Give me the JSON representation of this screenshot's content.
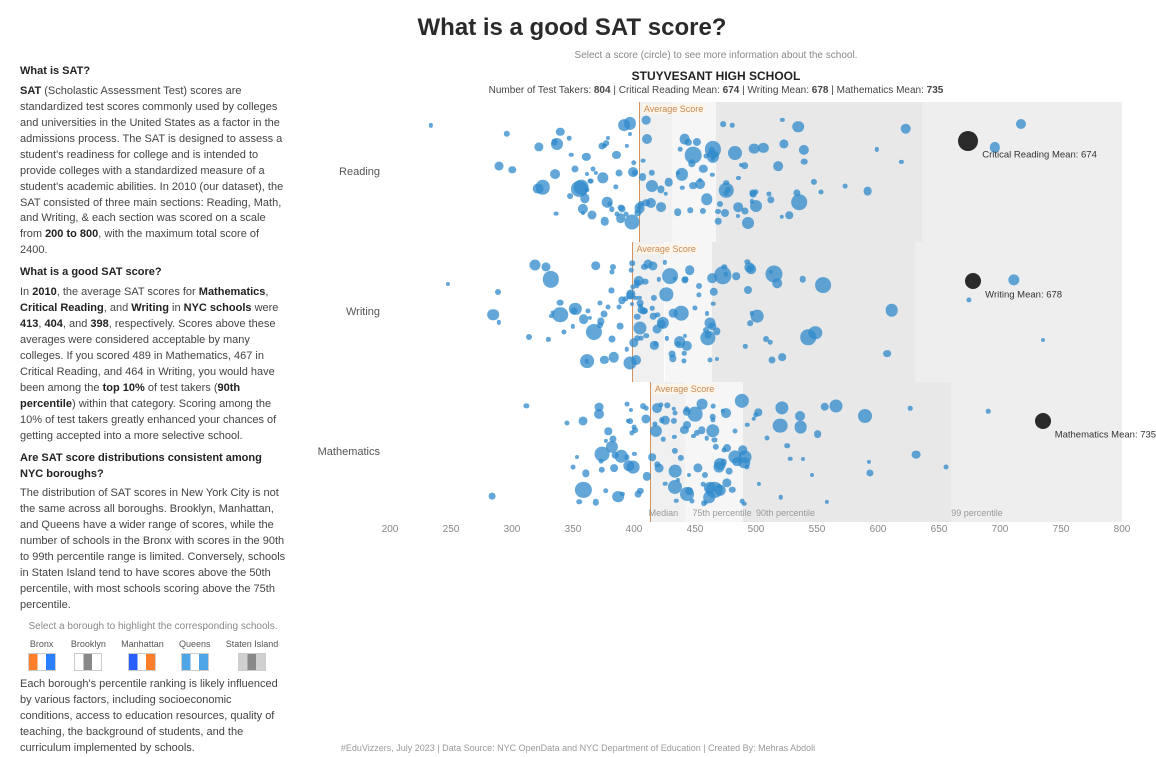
{
  "title": "What is a good SAT score?",
  "left": {
    "h1": "What is SAT?",
    "p1a": "SAT",
    "p1b": " (Scholastic Assessment Test) scores are standardized test scores commonly used by colleges and universities in the United States as a factor in the admissions process. The SAT is designed to assess a student's readiness for college and is intended to provide colleges with a standardized measure of a student's academic abilities. In 2010 (our dataset), the SAT consisted of three main sections: Reading, Math, and Writing, & each section was scored on a scale from ",
    "p1c": "200 to 800",
    "p1d": ", with the maximum total score of 2400.",
    "h2": "What is a good SAT score?",
    "p2a": "In ",
    "p2b": "2010",
    "p2c": ", the average SAT scores for ",
    "p2d": "Mathematics",
    "p2e": ", ",
    "p2f": "Critical Reading",
    "p2g": ", and ",
    "p2h": "Writing",
    "p2i": " in ",
    "p2j": "NYC schools",
    "p2k": " were ",
    "p2l": "413",
    "p2m": ", ",
    "p2n": "404",
    "p2o": ", and ",
    "p2p": "398",
    "p2q": ", respectively. Scores above these averages were considered acceptable by many colleges. If you scored 489 in Mathematics, 467 in Critical Reading, and 464 in Writing, you would have been among the ",
    "p2r": "top 10%",
    "p2s": " of test takers (",
    "p2t": "90th percentile",
    "p2u": ") within that category. Scoring among the 10% of test takers greatly enhanced your chances of getting accepted into a more selective school.",
    "h3": "Are SAT score distributions consistent among NYC boroughs?",
    "p3": "The distribution of SAT scores in New York City is not the same across all boroughs. Brooklyn, Manhattan, and Queens have a wider range of scores, while the number of schools in the Bronx with scores in the 90th to 99th percentile range is limited. Conversely, schools in Staten Island tend to have scores above the 50th percentile, with most schools scoring above the 75th percentile.",
    "borough_instr": "Select a borough to highlight the corresponding schools.",
    "boroughs": [
      {
        "name": "Bronx",
        "colors": [
          "#ff7f2a",
          "#ffffff",
          "#2a7fff"
        ]
      },
      {
        "name": "Brooklyn",
        "colors": [
          "#ffffff",
          "#888888",
          "#ffffff"
        ]
      },
      {
        "name": "Manhattan",
        "colors": [
          "#2a5fff",
          "#ffffff",
          "#ff7f2a"
        ]
      },
      {
        "name": "Queens",
        "colors": [
          "#4fa6e6",
          "#ffffff",
          "#4fa6e6"
        ]
      },
      {
        "name": "Staten Island",
        "colors": [
          "#d0d0d0",
          "#888888",
          "#d0d0d0"
        ]
      }
    ],
    "p4": "Each borough's percentile ranking is likely influenced by various factors, including socioeconomic conditions, access to education resources, quality of teaching, the background of students, and the curriculum implemented by schools."
  },
  "chart": {
    "instruction": "Select a score (circle) to see more information about the school.",
    "school_name": "STUYVESANT HIGH SCHOOL",
    "school_stats_prefix": "Number of Test Takers: ",
    "school_takers": "804",
    "school_cr_label": " | Critical Reading Mean:  ",
    "school_cr": "674",
    "school_wr_label": " | Writing Mean:  ",
    "school_wr": "678",
    "school_ma_label": "  |  Mathematics Mean: ",
    "school_ma": "735",
    "xmin": 200,
    "xmax": 800,
    "xticks": [
      200,
      250,
      300,
      350,
      400,
      450,
      500,
      550,
      600,
      650,
      700,
      750,
      800
    ],
    "dot_color": "#2f8acb",
    "dot_opacity": 0.75,
    "highlight_color": "#2a2a2a",
    "background": "#ffffff",
    "band_color": "rgba(0,0,0,0.04)",
    "avg_line_color": "#d4935e",
    "rows": [
      {
        "label": "Reading",
        "avg": 404,
        "avg_label": "Average Score",
        "highlight": {
          "x": 674,
          "r": 10,
          "label": "Critical Reading Mean: 674"
        },
        "bands": [
          {
            "from": 404,
            "to": 431
          },
          {
            "from": 431,
            "to": 467
          },
          {
            "from": 467,
            "to": 636
          },
          {
            "from": 636,
            "to": 800
          }
        ]
      },
      {
        "label": "Writing",
        "avg": 398,
        "avg_label": "Average Score",
        "highlight": {
          "x": 678,
          "r": 8,
          "label": "Writing Mean: 678"
        },
        "bands": [
          {
            "from": 398,
            "to": 425
          },
          {
            "from": 425,
            "to": 464
          },
          {
            "from": 464,
            "to": 630
          },
          {
            "from": 630,
            "to": 800
          }
        ]
      },
      {
        "label": "Mathematics",
        "avg": 413,
        "avg_label": "Average Score",
        "highlight": {
          "x": 735,
          "r": 8,
          "label": "Mathematics Mean: 735"
        },
        "bands": [
          {
            "from": 413,
            "to": 442
          },
          {
            "from": 442,
            "to": 489
          },
          {
            "from": 489,
            "to": 660
          },
          {
            "from": 660,
            "to": 800
          }
        ]
      }
    ],
    "percentile_labels": [
      {
        "text": "Median",
        "x": 412
      },
      {
        "text": "75th percentile",
        "x": 448
      },
      {
        "text": "90th percentile",
        "x": 500
      },
      {
        "text": "99 percentile",
        "x": 660
      }
    ],
    "random_seed": 42,
    "points_per_row": 140,
    "size_min": 2,
    "size_max": 9,
    "cluster_center_offset": 10,
    "cluster_sigma": 55
  },
  "footer": "#EduVizzers, July 2023 | Data Source: NYC OpenData and NYC Department of Education | Created By: Mehras Abdoli"
}
